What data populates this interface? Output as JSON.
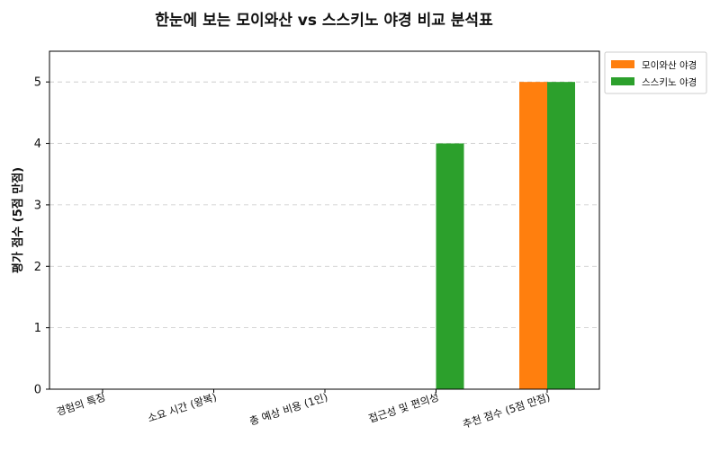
{
  "chart_data": {
    "type": "bar",
    "title": "한눈에 보는 모이와산 vs 스스키노 야경 비교 분석표",
    "xlabel": "",
    "ylabel": "평가 점수 (5점 만점)",
    "categories": [
      "경험의 특징",
      "소요 시간 (왕복)",
      "총 예상 비용 (1인)",
      "접근성 및 편의성",
      "추천 점수 (5점 만점)"
    ],
    "series": [
      {
        "name": "모이와산 야경",
        "color": "#ff7f0e",
        "values": [
          0,
          0,
          0,
          0,
          5
        ]
      },
      {
        "name": "스스키노 야경",
        "color": "#2ca02c",
        "values": [
          0,
          0,
          0,
          4,
          5
        ]
      }
    ],
    "ylim": [
      0,
      5.5
    ],
    "yticks": [
      0,
      1,
      2,
      3,
      4,
      5
    ],
    "grid": true,
    "legend_position": "outside-top-right"
  }
}
